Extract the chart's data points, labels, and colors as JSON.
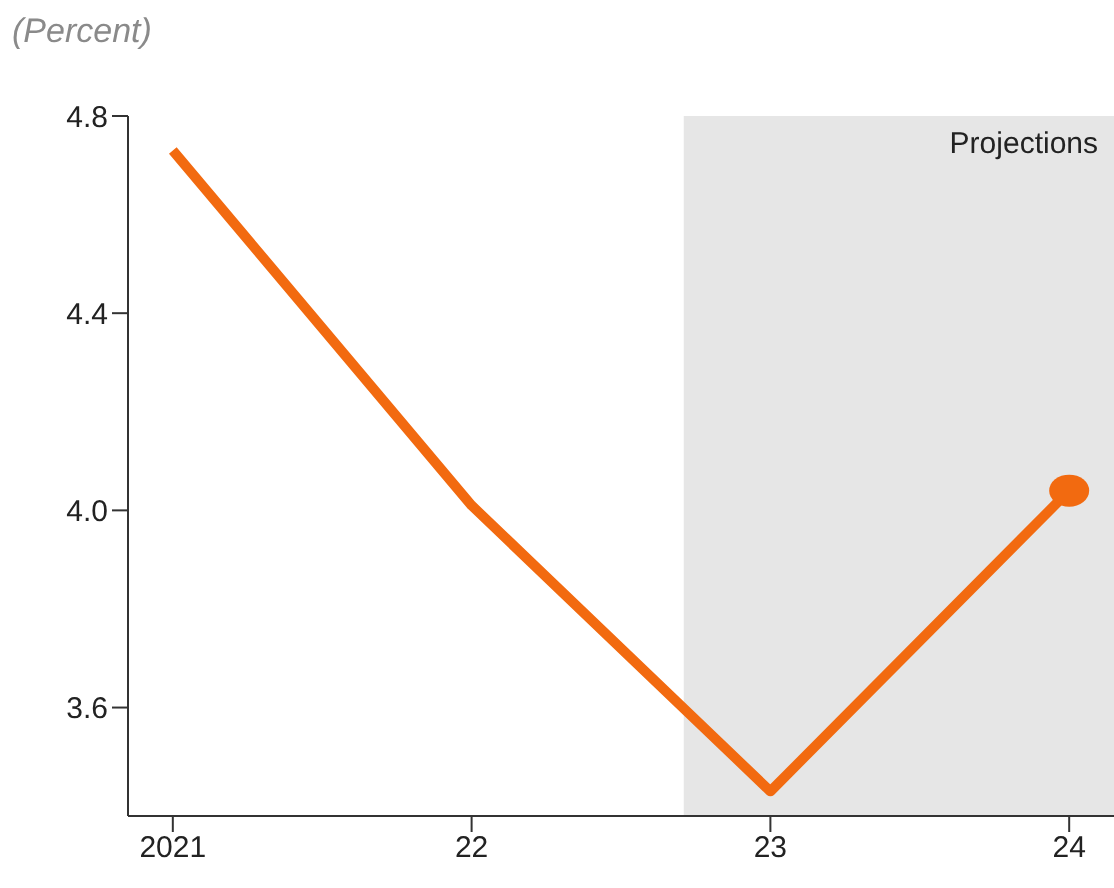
{
  "chart_data": {
    "type": "line",
    "ylabel": "(Percent)",
    "x": [
      2021,
      2022,
      2023,
      2024
    ],
    "series": [
      {
        "color": "#f26a10",
        "values": [
          4.73,
          4.01,
          3.43,
          4.04
        ]
      },
      {
        "type": "scatter",
        "color": "#f26a10",
        "x": [
          2024
        ],
        "values": [
          4.04
        ]
      }
    ],
    "xlim": [
      2020.85,
      2024.15
    ],
    "xticks": [
      {
        "value": 2021,
        "label": "2021"
      },
      {
        "value": 2022,
        "label": "22"
      },
      {
        "value": 2023,
        "label": "23"
      },
      {
        "value": 2024,
        "label": "24"
      }
    ],
    "ylim": [
      3.38,
      4.8
    ],
    "yticks": [
      {
        "value": 3.6,
        "label": "3.6"
      },
      {
        "value": 4.0,
        "label": "4.0"
      },
      {
        "value": 4.4,
        "label": "4.4"
      },
      {
        "value": 4.8,
        "label": "4.8"
      }
    ],
    "bands": [
      {
        "axis": "x",
        "from": 2022.71,
        "to": 2024.15,
        "label": "Projections",
        "color": "#e6e6e6"
      }
    ],
    "grid": false
  }
}
